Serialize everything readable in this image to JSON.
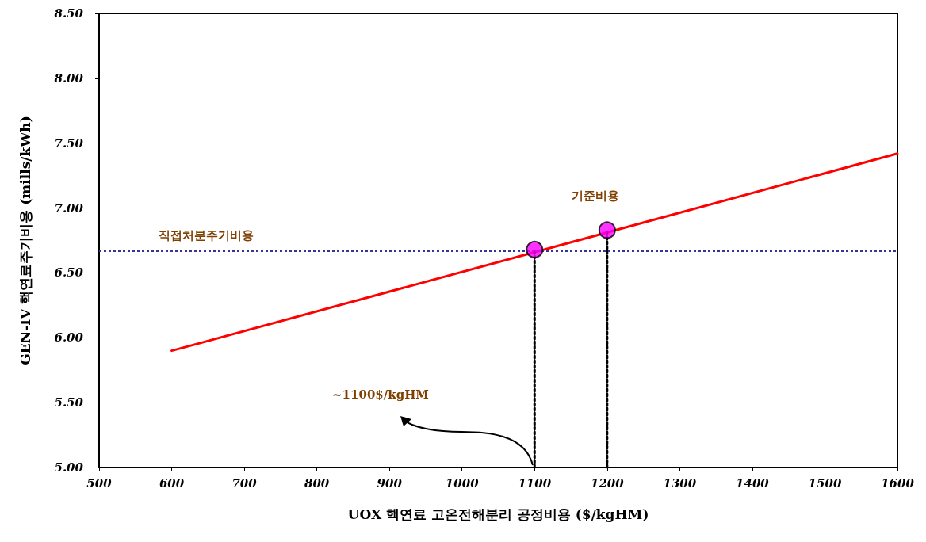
{
  "chart_data": {
    "type": "line",
    "xlabel": "UOX 핵연료 고온전해분리 공정비용 ($/kgHM)",
    "ylabel": "GEN-IV 핵연료주기비용 (mills/kWh)",
    "xlim": [
      500,
      1600
    ],
    "xticks": [
      500,
      600,
      700,
      800,
      900,
      1000,
      1100,
      1200,
      1300,
      1400,
      1500,
      1600
    ],
    "ylim": [
      5,
      8.5
    ],
    "yticks": [
      {
        "value": 5,
        "label": "5.00"
      },
      {
        "value": 5.5,
        "label": "5.50"
      },
      {
        "value": 6,
        "label": "6.00"
      },
      {
        "value": 6.5,
        "label": "6.50"
      },
      {
        "value": 7,
        "label": "7.00"
      },
      {
        "value": 7.5,
        "label": "7.50"
      },
      {
        "value": 8,
        "label": "8.00"
      },
      {
        "value": 8.5,
        "label": "8.50"
      }
    ],
    "grid": false,
    "series": [
      {
        "color": "#ff0000",
        "x": [
          600,
          1600
        ],
        "values": [
          5.9,
          7.42
        ],
        "marker": "none",
        "line_style": "solid"
      },
      {
        "color": "#000000",
        "x": [
          1100,
          1100
        ],
        "values": [
          5,
          6.68
        ],
        "marker": "none",
        "line_style": "dotted"
      },
      {
        "color": "#000000",
        "x": [
          1200,
          1200
        ],
        "values": [
          5,
          6.83
        ],
        "marker": "none",
        "line_style": "dotted"
      },
      {
        "type": "scatter",
        "color": "#ff00ff",
        "x": [
          1100,
          1200
        ],
        "values": [
          6.68,
          6.83
        ],
        "marker": "circle"
      }
    ],
    "ref_lines": [
      {
        "axis": "y",
        "value": 6.67,
        "label": "직접처분주기비용",
        "color": "#333399",
        "line_style": "dotted"
      }
    ],
    "annotations": [
      {
        "text": "기준비용",
        "x": 1200,
        "y": 6.83
      },
      "~1100$/kgHM"
    ]
  }
}
